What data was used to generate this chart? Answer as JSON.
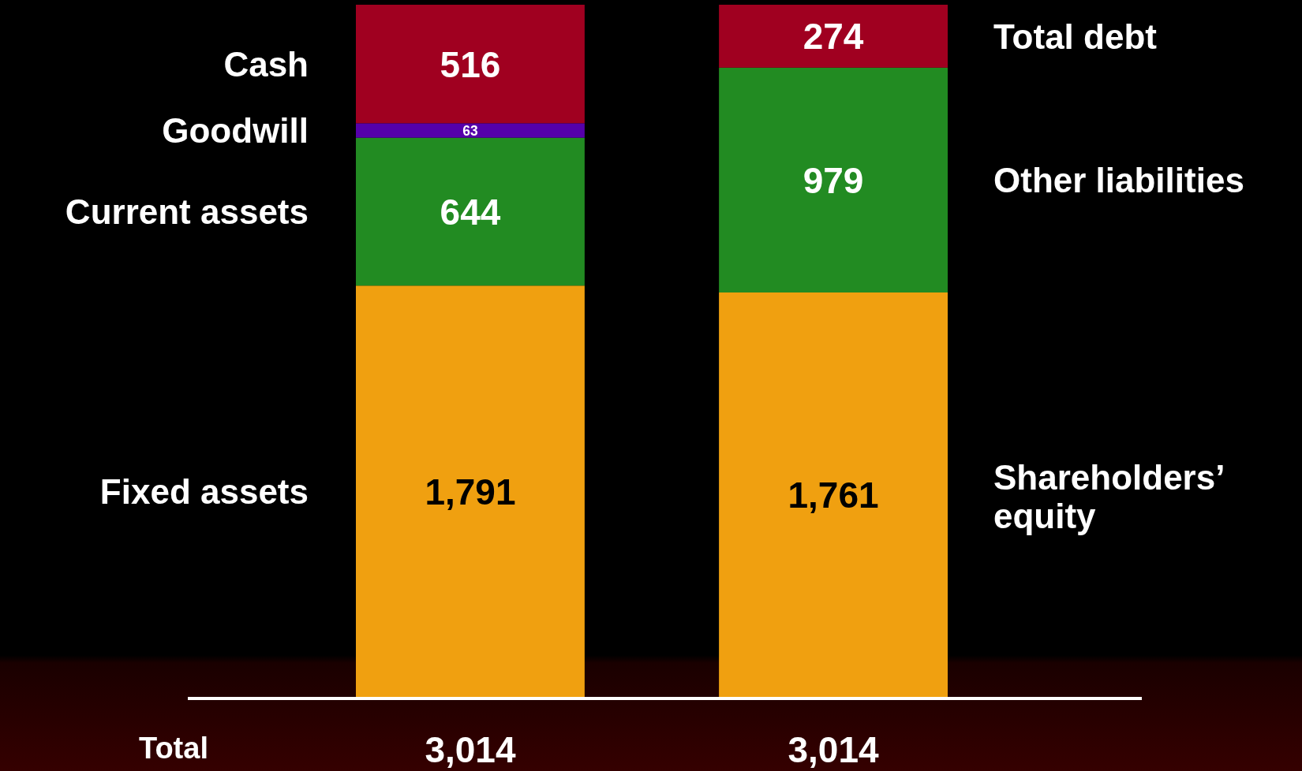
{
  "chart_data": {
    "type": "bar",
    "stacked": true,
    "categories": [
      null,
      null
    ],
    "series": [
      {
        "name": "Fixed assets",
        "color": "#f0a010",
        "values": [
          1791,
          null
        ],
        "value_labels": [
          "1,791",
          null
        ]
      },
      {
        "name": "Shareholders’ equity",
        "color": "#f0a010",
        "values": [
          null,
          1761
        ],
        "value_labels": [
          null,
          "1,761"
        ]
      },
      {
        "name": "Current assets",
        "color": "#228b22",
        "values": [
          644,
          null
        ],
        "value_labels": [
          "644",
          null
        ]
      },
      {
        "name": "Other liabilities",
        "color": "#228b22",
        "values": [
          null,
          979
        ],
        "value_labels": [
          null,
          "979"
        ]
      },
      {
        "name": "Goodwill",
        "color": "#5500aa",
        "values": [
          63,
          null
        ],
        "value_labels": [
          "63",
          null
        ]
      },
      {
        "name": "Cash",
        "color": "#a00020",
        "values": [
          516,
          null
        ],
        "value_labels": [
          "516",
          null
        ]
      },
      {
        "name": "Total debt",
        "color": "#a00020",
        "values": [
          null,
          274
        ],
        "value_labels": [
          null,
          "274"
        ]
      }
    ],
    "totals": [
      "3,014",
      "3,014"
    ],
    "annotations": [
      "Total"
    ]
  }
}
